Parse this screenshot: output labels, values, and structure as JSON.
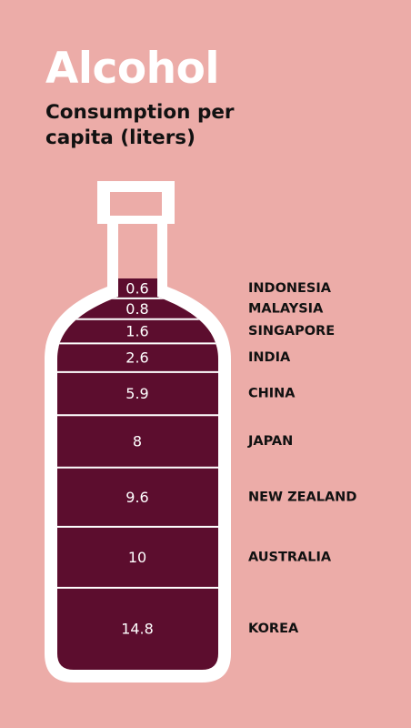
{
  "header": {
    "title": "Alcohol",
    "subtitle": "Consumption per capita (liters)"
  },
  "colors": {
    "background": "#ecaca8",
    "bottle_fill": "#5c0d2e",
    "bottle_outline": "#ffffff",
    "title": "#ffffff",
    "subtitle": "#111111",
    "labels": "#111111"
  },
  "chart_data": {
    "type": "bar",
    "title": "Alcohol",
    "subtitle": "Consumption per capita (liters)",
    "categories": [
      "INDONESIA",
      "MALAYSIA",
      "SINGAPORE",
      "INDIA",
      "CHINA",
      "JAPAN",
      "NEW ZEALAND",
      "AUSTRALIA",
      "KOREA"
    ],
    "values": [
      0.6,
      0.8,
      1.6,
      2.6,
      5.9,
      8,
      9.6,
      10,
      14.8
    ],
    "value_labels": [
      "0.6",
      "0.8",
      "1.6",
      "2.6",
      "5.9",
      "8",
      "9.6",
      "10",
      "14.8"
    ],
    "grid": false,
    "legend": "none"
  }
}
